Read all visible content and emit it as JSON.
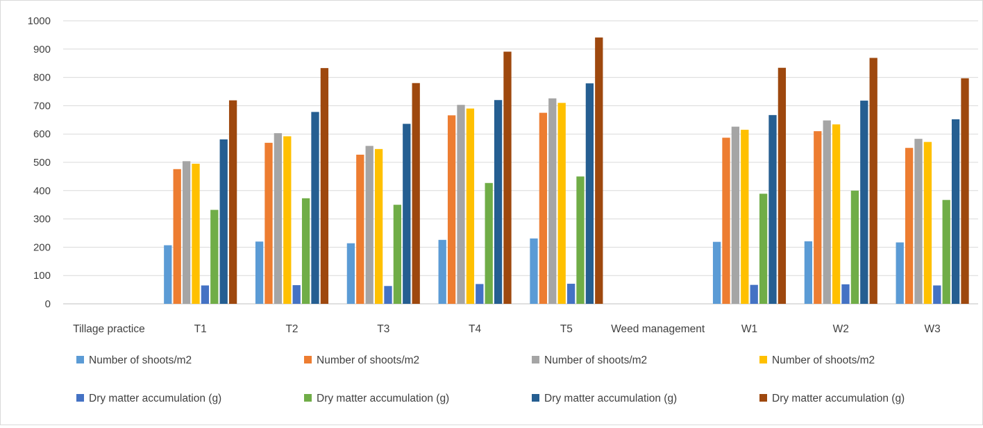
{
  "chart_data": {
    "type": "bar",
    "title": "",
    "xlabel": "",
    "ylabel": "",
    "ylim": [
      0,
      1000
    ],
    "yticks": [
      0,
      100,
      200,
      300,
      400,
      500,
      600,
      700,
      800,
      900,
      1000
    ],
    "grid": true,
    "legend_position": "bottom",
    "categories": [
      "Tillage practice",
      "T1",
      "T2",
      "T3",
      "T4",
      "T5",
      "Weed management",
      "W1",
      "W2",
      "W3"
    ],
    "series": [
      {
        "name": "Number of shoots/m2",
        "color": "#5B9BD5",
        "values": [
          null,
          207,
          220,
          214,
          226,
          231,
          null,
          219,
          221,
          217
        ]
      },
      {
        "name": "Number of shoots/m2",
        "color": "#ED7D31",
        "values": [
          null,
          476,
          569,
          527,
          666,
          675,
          null,
          587,
          610,
          551
        ]
      },
      {
        "name": "Number of shoots/m2",
        "color": "#A5A5A5",
        "values": [
          null,
          504,
          603,
          558,
          703,
          726,
          null,
          626,
          648,
          583
        ]
      },
      {
        "name": "Number of shoots/m2",
        "color": "#FFC000",
        "values": [
          null,
          495,
          592,
          547,
          690,
          710,
          null,
          615,
          634,
          572
        ]
      },
      {
        "name": "Dry matter accumulation (g)",
        "color": "#4472C4",
        "values": [
          null,
          65,
          66,
          63,
          70,
          71,
          null,
          67,
          69,
          65
        ]
      },
      {
        "name": "Dry matter accumulation (g)",
        "color": "#70AD47",
        "values": [
          null,
          332,
          373,
          350,
          427,
          450,
          null,
          389,
          400,
          367
        ]
      },
      {
        "name": "Dry matter accumulation (g)",
        "color": "#255E91",
        "values": [
          null,
          581,
          678,
          636,
          720,
          779,
          null,
          667,
          718,
          652
        ]
      },
      {
        "name": "Dry matter accumulation (g)",
        "color": "#9E480E",
        "values": [
          null,
          719,
          833,
          780,
          891,
          941,
          null,
          834,
          869,
          797
        ]
      }
    ]
  }
}
